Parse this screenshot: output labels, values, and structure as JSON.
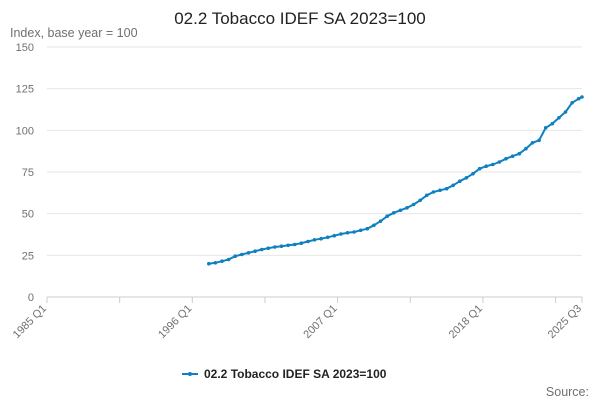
{
  "title": "02.2 Tobacco IDEF SA 2023=100",
  "source_label": "Source:",
  "chart_data": {
    "type": "line",
    "title": "02.2 Tobacco IDEF SA 2023=100",
    "ylabel": "Index, base year = 100",
    "xlabel": "",
    "ylim": [
      0,
      150
    ],
    "yticks": [
      0,
      25,
      50,
      75,
      100,
      125,
      150
    ],
    "xticks": [
      "1985 Q1",
      "1996 Q1",
      "2007 Q1",
      "2018 Q1",
      "2025 Q3"
    ],
    "xlim": [
      "1985 Q1",
      "2025 Q3"
    ],
    "grid": true,
    "legend_position": "bottom",
    "series": [
      {
        "name": "02.2 Tobacco IDEF SA 2023=100",
        "color": "#0f80c0",
        "points": [
          [
            "1997 Q2",
            20.0
          ],
          [
            "1997 Q4",
            20.5
          ],
          [
            "1998 Q2",
            21.5
          ],
          [
            "1998 Q4",
            22.5
          ],
          [
            "1999 Q2",
            24.5
          ],
          [
            "1999 Q4",
            25.5
          ],
          [
            "2000 Q2",
            26.5
          ],
          [
            "2000 Q4",
            27.5
          ],
          [
            "2001 Q2",
            28.5
          ],
          [
            "2001 Q4",
            29.3
          ],
          [
            "2002 Q2",
            30.0
          ],
          [
            "2002 Q4",
            30.5
          ],
          [
            "2003 Q2",
            31.0
          ],
          [
            "2003 Q4",
            31.5
          ],
          [
            "2004 Q2",
            32.3
          ],
          [
            "2004 Q4",
            33.3
          ],
          [
            "2005 Q2",
            34.3
          ],
          [
            "2005 Q4",
            35.0
          ],
          [
            "2006 Q2",
            35.8
          ],
          [
            "2006 Q4",
            36.8
          ],
          [
            "2007 Q2",
            37.8
          ],
          [
            "2007 Q4",
            38.5
          ],
          [
            "2008 Q2",
            39.0
          ],
          [
            "2008 Q4",
            40.0
          ],
          [
            "2009 Q2",
            41.0
          ],
          [
            "2009 Q4",
            43.0
          ],
          [
            "2010 Q2",
            45.5
          ],
          [
            "2010 Q4",
            48.5
          ],
          [
            "2011 Q2",
            50.5
          ],
          [
            "2011 Q4",
            52.0
          ],
          [
            "2012 Q2",
            53.5
          ],
          [
            "2012 Q4",
            55.5
          ],
          [
            "2013 Q2",
            58.0
          ],
          [
            "2013 Q4",
            61.0
          ],
          [
            "2014 Q2",
            63.0
          ],
          [
            "2014 Q4",
            64.0
          ],
          [
            "2015 Q2",
            65.0
          ],
          [
            "2015 Q4",
            67.0
          ],
          [
            "2016 Q2",
            69.5
          ],
          [
            "2016 Q4",
            71.5
          ],
          [
            "2017 Q2",
            74.0
          ],
          [
            "2017 Q4",
            77.0
          ],
          [
            "2018 Q2",
            78.5
          ],
          [
            "2018 Q4",
            79.5
          ],
          [
            "2019 Q2",
            81.0
          ],
          [
            "2019 Q4",
            83.0
          ],
          [
            "2020 Q2",
            84.5
          ],
          [
            "2020 Q4",
            86.0
          ],
          [
            "2021 Q2",
            89.0
          ],
          [
            "2021 Q4",
            92.5
          ],
          [
            "2022 Q2",
            94.0
          ],
          [
            "2022 Q4",
            101.5
          ],
          [
            "2023 Q2",
            104.0
          ],
          [
            "2023 Q4",
            107.5
          ],
          [
            "2024 Q2",
            111.0
          ],
          [
            "2024 Q4",
            116.5
          ],
          [
            "2025 Q2",
            119.0
          ],
          [
            "2025 Q3",
            120.0
          ]
        ]
      }
    ]
  }
}
